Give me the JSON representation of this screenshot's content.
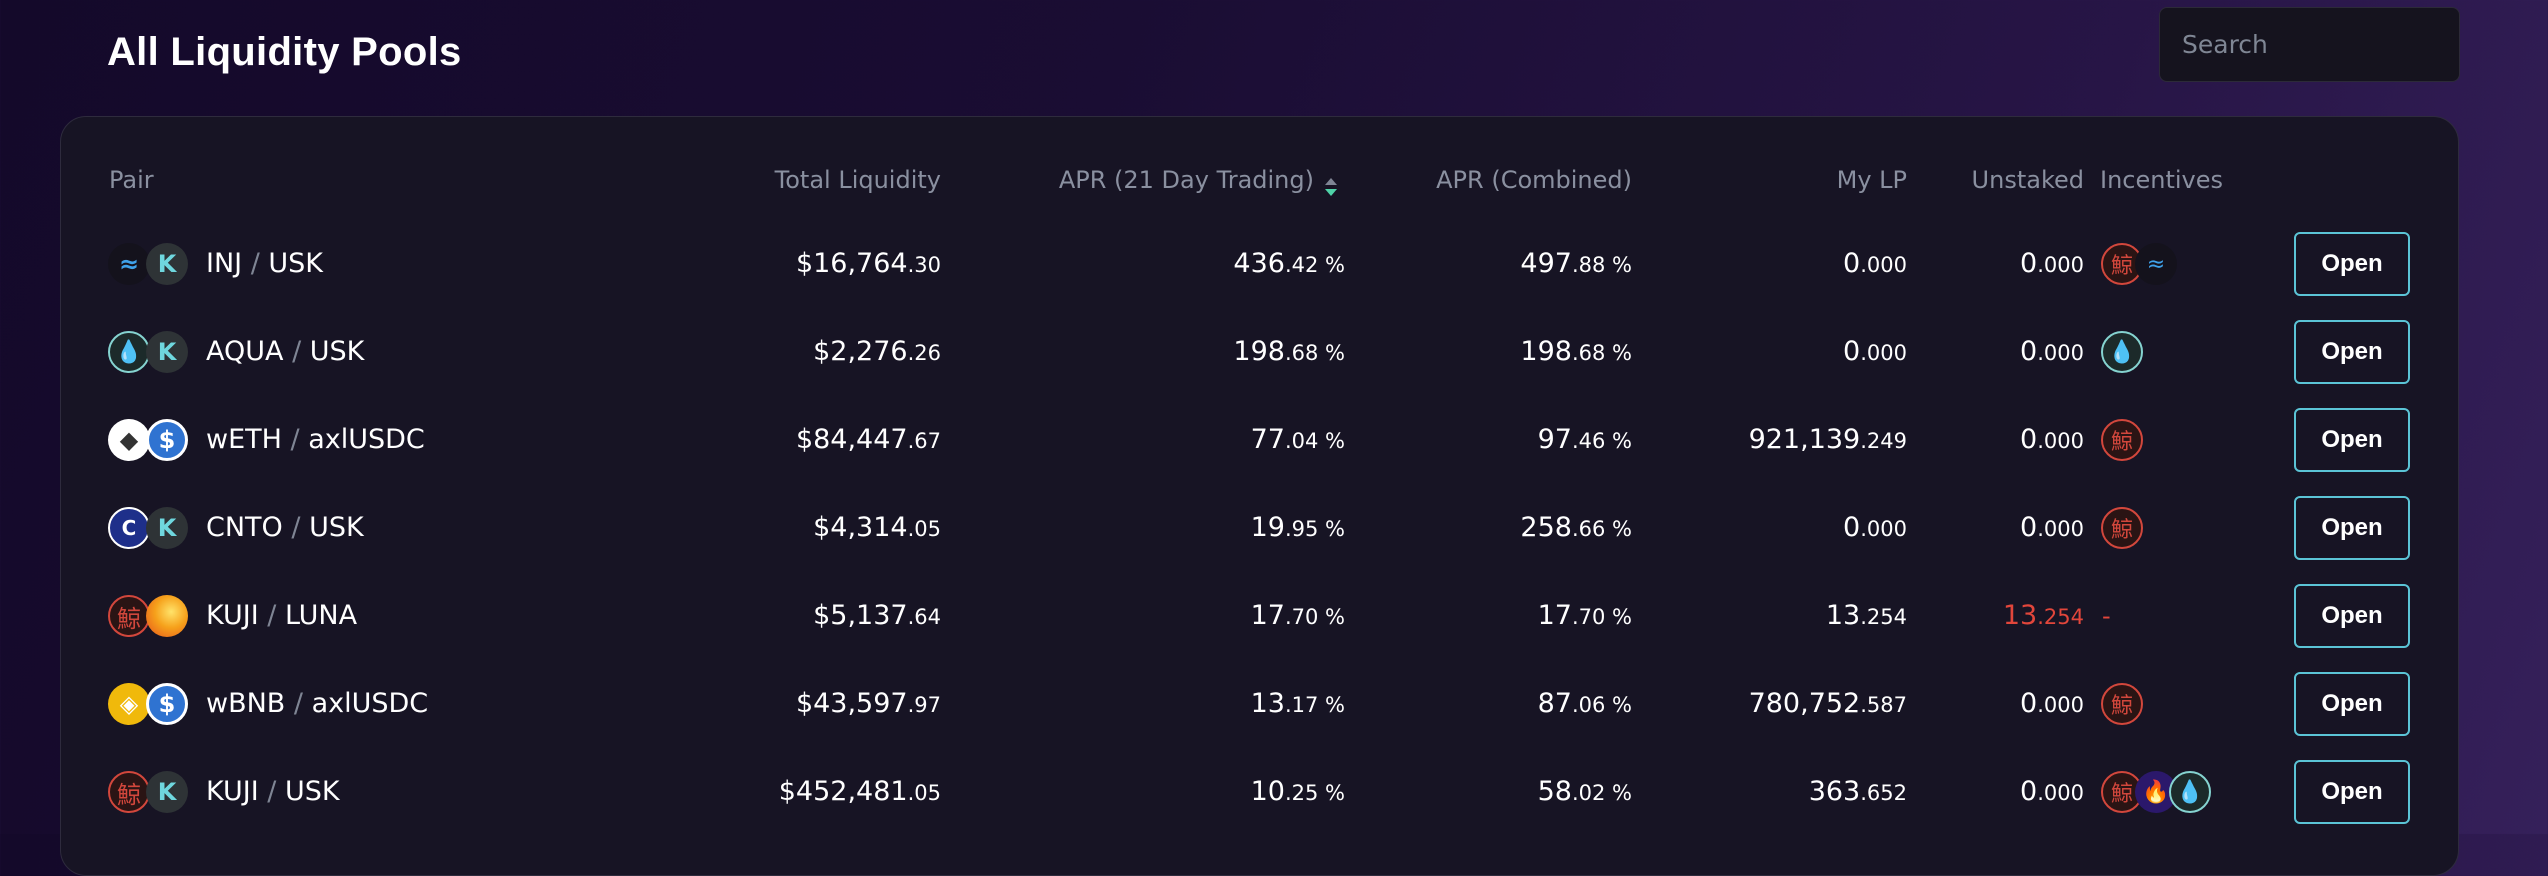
{
  "page": {
    "title": "All Liquidity Pools"
  },
  "search": {
    "placeholder": "Search"
  },
  "table": {
    "headers": {
      "pair": "Pair",
      "total_liquidity": "Total Liquidity",
      "apr_trading": "APR (21 Day Trading)",
      "apr_combined": "APR (Combined)",
      "my_lp": "My LP",
      "unstaked": "Unstaked",
      "incentives": "Incentives"
    },
    "sort": {
      "column": "apr_trading",
      "direction": "descending"
    },
    "open_label": "Open",
    "rows": [
      {
        "base": "INJ",
        "quote": "USK",
        "base_icon": "injective-icon",
        "quote_icon": "usk-icon",
        "liq_int": "$16,764",
        "liq_dec": ".30",
        "apr_t_int": "436",
        "apr_t_dec": ".42 %",
        "apr_c_int": "497",
        "apr_c_dec": ".88 %",
        "mylp_int": "0",
        "mylp_dec": ".000",
        "unstaked_int": "0",
        "unstaked_dec": ".000",
        "unstaked_alert": false,
        "incentives": [
          "kuji-icon",
          "injective-icon"
        ]
      },
      {
        "base": "AQUA",
        "quote": "USK",
        "base_icon": "aqua-drop-icon",
        "quote_icon": "usk-icon",
        "liq_int": "$2,276",
        "liq_dec": ".26",
        "apr_t_int": "198",
        "apr_t_dec": ".68 %",
        "apr_c_int": "198",
        "apr_c_dec": ".68 %",
        "mylp_int": "0",
        "mylp_dec": ".000",
        "unstaked_int": "0",
        "unstaked_dec": ".000",
        "unstaked_alert": false,
        "incentives": [
          "aqua-drop-icon"
        ]
      },
      {
        "base": "wETH",
        "quote": "axlUSDC",
        "base_icon": "ethereum-icon",
        "quote_icon": "usdc-icon",
        "liq_int": "$84,447",
        "liq_dec": ".67",
        "apr_t_int": "77",
        "apr_t_dec": ".04 %",
        "apr_c_int": "97",
        "apr_c_dec": ".46 %",
        "mylp_int": "921,139",
        "mylp_dec": ".249",
        "unstaked_int": "0",
        "unstaked_dec": ".000",
        "unstaked_alert": false,
        "incentives": [
          "kuji-icon"
        ]
      },
      {
        "base": "CNTO",
        "quote": "USK",
        "base_icon": "ciento-icon",
        "quote_icon": "usk-icon",
        "liq_int": "$4,314",
        "liq_dec": ".05",
        "apr_t_int": "19",
        "apr_t_dec": ".95 %",
        "apr_c_int": "258",
        "apr_c_dec": ".66 %",
        "mylp_int": "0",
        "mylp_dec": ".000",
        "unstaked_int": "0",
        "unstaked_dec": ".000",
        "unstaked_alert": false,
        "incentives": [
          "kuji-icon"
        ]
      },
      {
        "base": "KUJI",
        "quote": "LUNA",
        "base_icon": "kuji-icon",
        "quote_icon": "luna-icon",
        "liq_int": "$5,137",
        "liq_dec": ".64",
        "apr_t_int": "17",
        "apr_t_dec": ".70 %",
        "apr_c_int": "17",
        "apr_c_dec": ".70 %",
        "mylp_int": "13",
        "mylp_dec": ".254",
        "unstaked_int": "13",
        "unstaked_dec": ".254",
        "unstaked_alert": true,
        "incentives": [],
        "incentives_empty": "-"
      },
      {
        "base": "wBNB",
        "quote": "axlUSDC",
        "base_icon": "bnb-icon",
        "quote_icon": "usdc-icon",
        "liq_int": "$43,597",
        "liq_dec": ".97",
        "apr_t_int": "13",
        "apr_t_dec": ".17 %",
        "apr_c_int": "87",
        "apr_c_dec": ".06 %",
        "mylp_int": "780,752",
        "mylp_dec": ".587",
        "unstaked_int": "0",
        "unstaked_dec": ".000",
        "unstaked_alert": false,
        "incentives": [
          "kuji-icon"
        ]
      },
      {
        "base": "KUJI",
        "quote": "USK",
        "base_icon": "kuji-icon",
        "quote_icon": "usk-icon",
        "liq_int": "$452,481",
        "liq_dec": ".05",
        "apr_t_int": "10",
        "apr_t_dec": ".25 %",
        "apr_c_int": "58",
        "apr_c_dec": ".02 %",
        "mylp_int": "363",
        "mylp_dec": ".652",
        "unstaked_int": "0",
        "unstaked_dec": ".000",
        "unstaked_alert": false,
        "incentives": [
          "kuji-icon",
          "fire-icon",
          "aqua-drop-icon"
        ]
      }
    ]
  },
  "icon_glyphs": {
    "injective-icon": "≈",
    "usk-icon": "K",
    "aqua-drop-icon": "💧",
    "ethereum-icon": "◆",
    "usdc-icon": "$",
    "ciento-icon": "C",
    "kuji-icon": "鯨",
    "luna-icon": "",
    "bnb-icon": "◈",
    "fire-icon": "🔥"
  },
  "colors": {
    "accent": "#5bc4d6",
    "alert": "#e2463b",
    "sort_up": "#7f8594",
    "sort_down": "#4fd3a8"
  }
}
